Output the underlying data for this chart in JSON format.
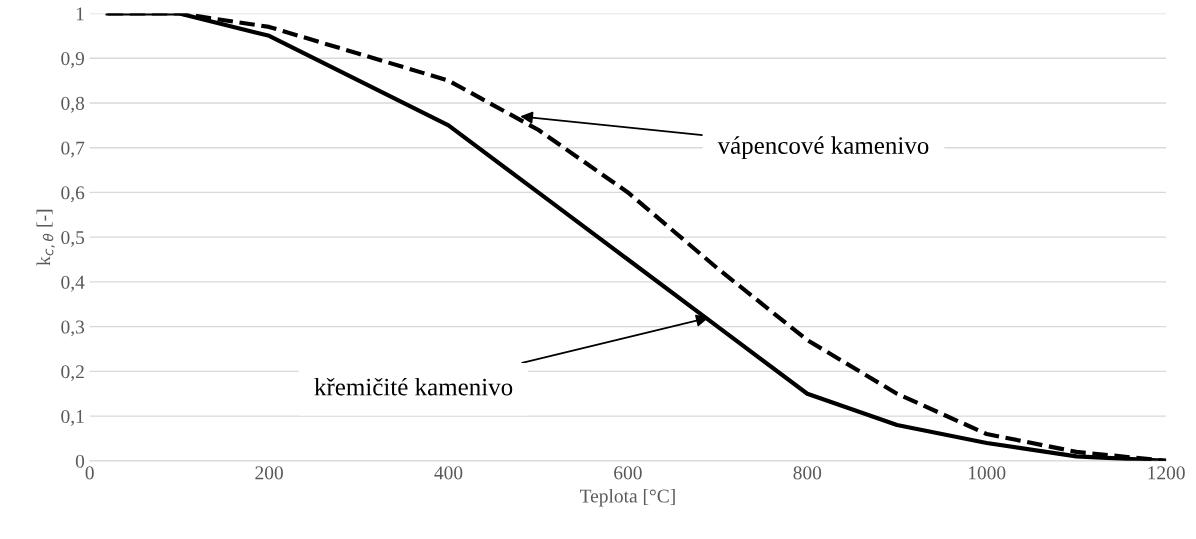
{
  "chart_data": {
    "type": "line",
    "xlabel": "Teplota [°C]",
    "ylabel": "k$_{c,θ}$ [-]",
    "x": [
      20,
      100,
      200,
      300,
      400,
      500,
      600,
      700,
      800,
      900,
      1000,
      1100,
      1200
    ],
    "series": [
      {
        "color": "#000000",
        "line_style": "solid",
        "values": [
          1,
          1,
          0.95,
          0.85,
          0.75,
          0.6,
          0.45,
          0.3,
          0.15,
          0.08,
          0.04,
          0.01,
          0
        ]
      },
      {
        "color": "#000000",
        "line_style": "dashed",
        "values": [
          1,
          1,
          0.97,
          0.91,
          0.85,
          0.74,
          0.6,
          0.43,
          0.27,
          0.15,
          0.06,
          0.02,
          0
        ]
      }
    ],
    "xlim": [
      0,
      1200
    ],
    "xticks": [
      0,
      200,
      400,
      600,
      800,
      1000,
      1200
    ],
    "ylim": [
      0,
      1
    ],
    "yticks": [
      0,
      {
        "value": 0.1,
        "label": "0,1"
      },
      {
        "value": 0.2,
        "label": "0,2"
      },
      {
        "value": 0.3,
        "label": "0,3"
      },
      {
        "value": 0.4,
        "label": "0,4"
      },
      {
        "value": 0.5,
        "label": "0,5"
      },
      {
        "value": 0.6,
        "label": "0,6"
      },
      {
        "value": 0.7,
        "label": "0,7"
      },
      {
        "value": 0.8,
        "label": "0,8"
      },
      {
        "value": 0.9,
        "label": "0,9"
      },
      1
    ],
    "grid": "y",
    "marker": "none",
    "annotations": [
      {
        "text": "vápencové kamenivo",
        "x": 480,
        "y": 0.77
      },
      {
        "text": "křemičité kamenivo",
        "x": 690,
        "y": 0.32
      }
    ]
  }
}
